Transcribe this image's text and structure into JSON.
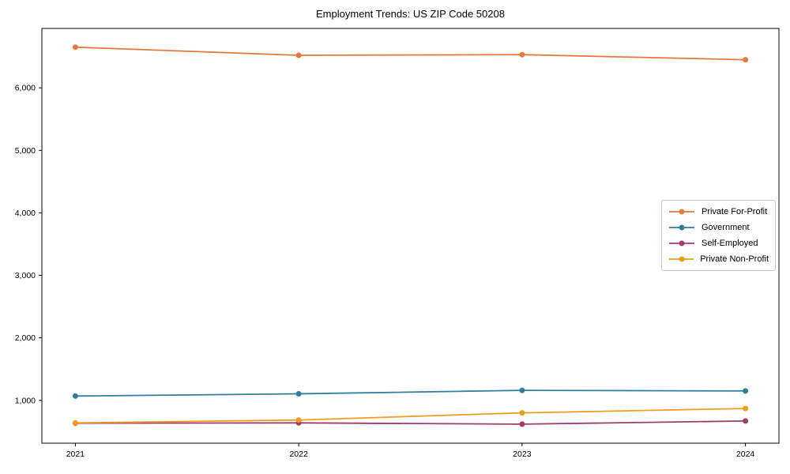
{
  "title": "Employment Trends: US ZIP Code 50208",
  "chart_data": {
    "type": "line",
    "x_labels": [
      "2021",
      "2022",
      "2023",
      "2024"
    ],
    "series": [
      {
        "name": "Private For-Profit",
        "color": "#e5793a",
        "values": [
          6650,
          6520,
          6530,
          6450
        ]
      },
      {
        "name": "Government",
        "color": "#2e7f9e",
        "values": [
          1070,
          1105,
          1160,
          1150
        ]
      },
      {
        "name": "Self-Employed",
        "color": "#a23a6e",
        "values": [
          635,
          640,
          620,
          670
        ]
      },
      {
        "name": "Private Non-Profit",
        "color": "#f09c1e",
        "values": [
          640,
          685,
          800,
          870
        ]
      }
    ],
    "title": "Employment Trends: US ZIP Code 50208",
    "xlabel": "",
    "ylabel": "",
    "ylim": [
      315,
      6950
    ],
    "yticks": [
      1000,
      2000,
      3000,
      4000,
      5000,
      6000
    ],
    "ytick_labels": [
      "1,000",
      "2,000",
      "3,000",
      "4,000",
      "5,000",
      "6,000"
    ],
    "grid": false,
    "legend_position": "center right inside",
    "axis_color": "#000000",
    "background_color": "#ffffff",
    "marker": "circle"
  }
}
